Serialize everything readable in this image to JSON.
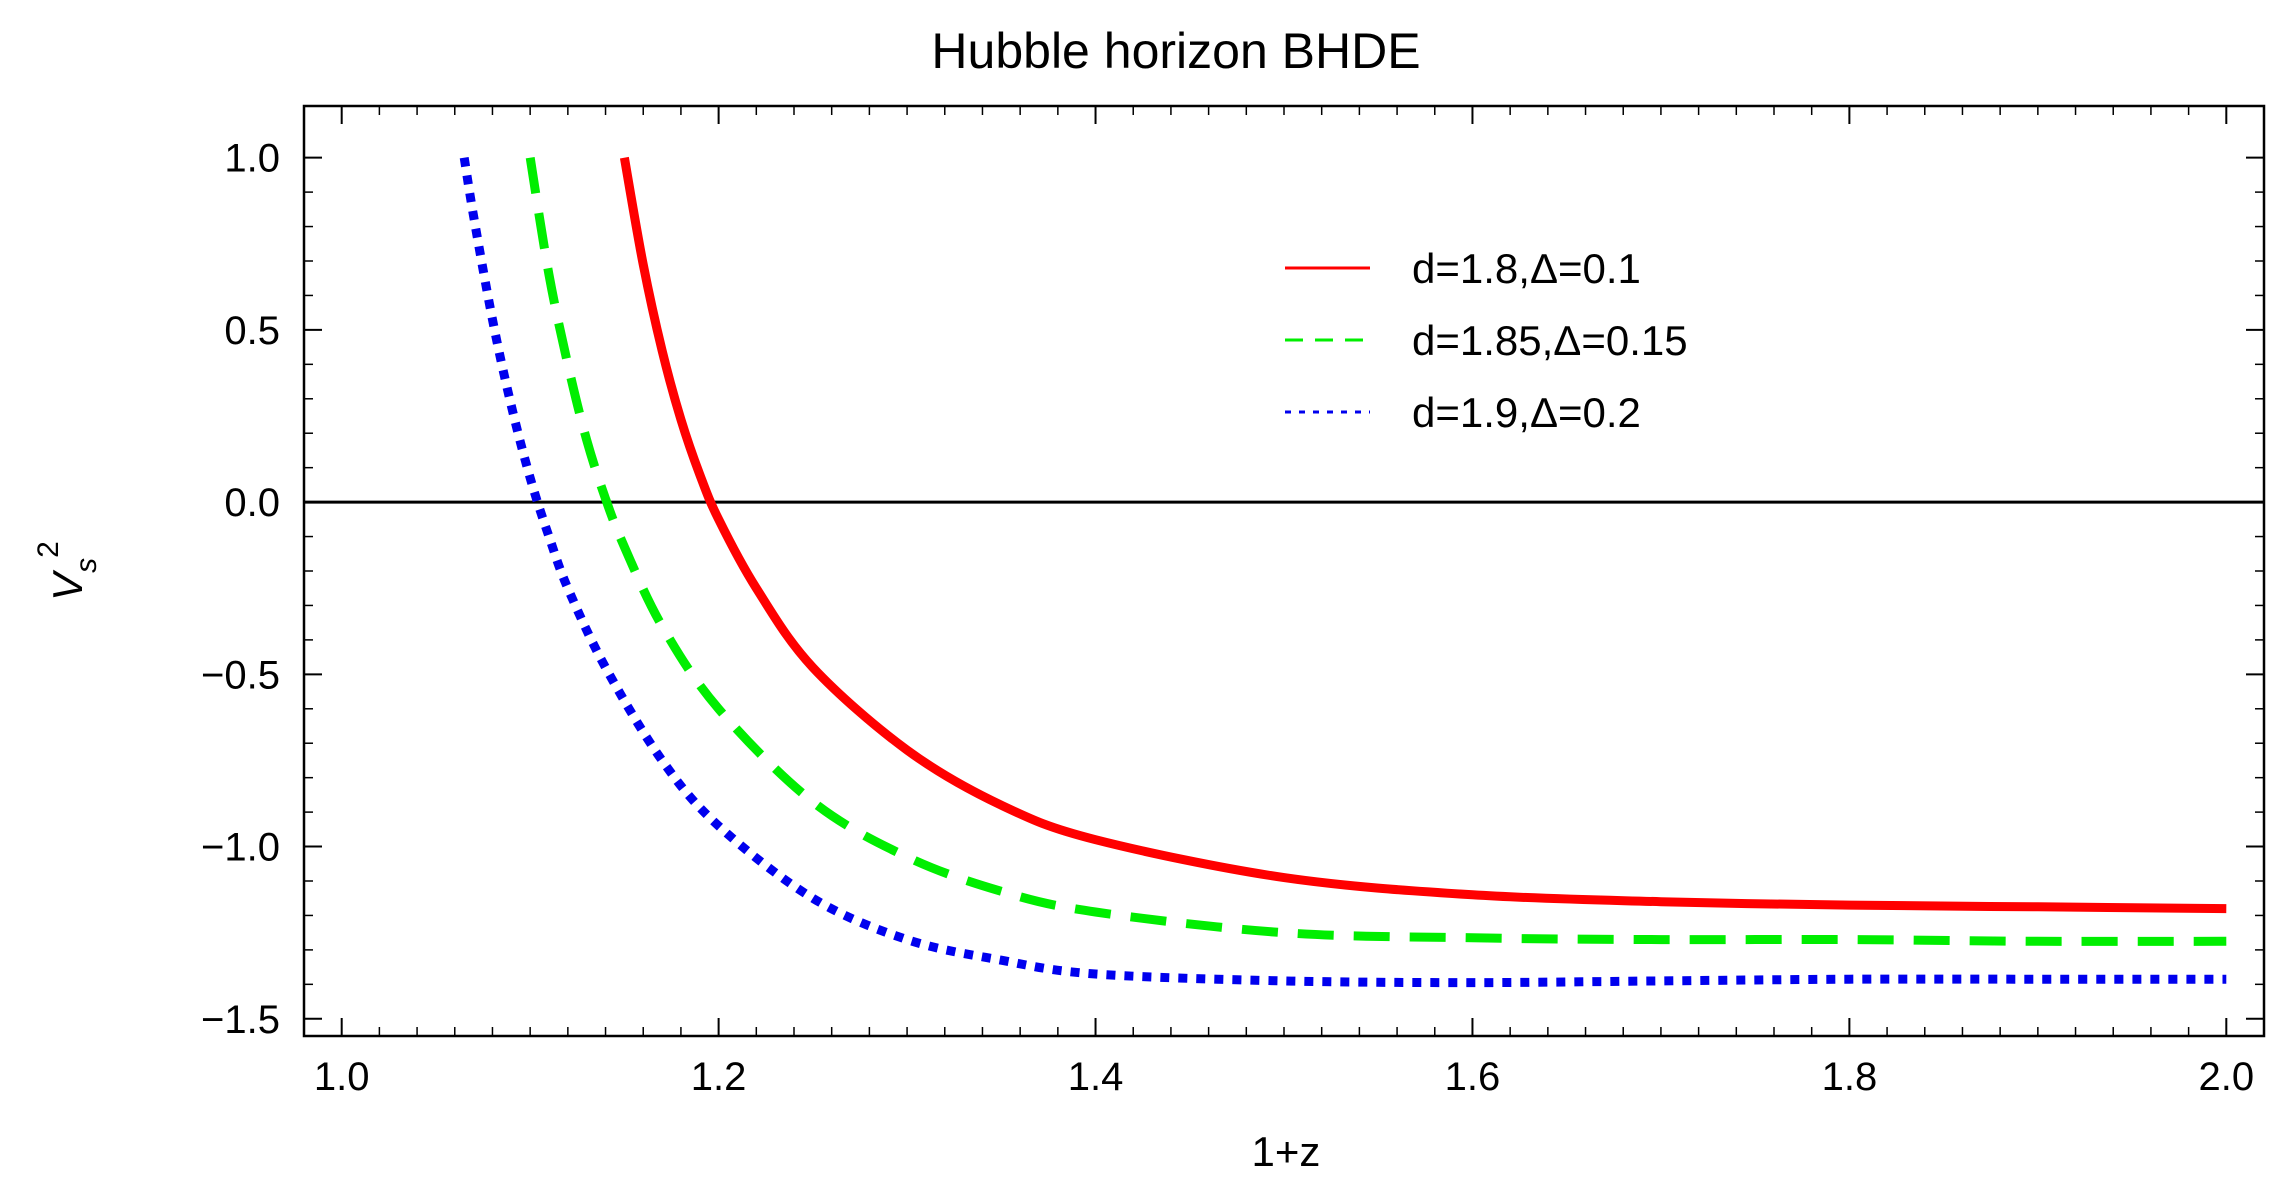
{
  "chart_data": {
    "type": "line",
    "title": "Hubble horizon BHDE",
    "xlabel": "1+z",
    "ylabel_base": "V",
    "ylabel_sub": "s",
    "ylabel_sup": "2",
    "xlim": [
      0.98,
      2.02
    ],
    "ylim": [
      -1.55,
      1.15
    ],
    "xticks": [
      1.0,
      1.2,
      1.4,
      1.6,
      1.8,
      2.0
    ],
    "xtick_labels": [
      "1.0",
      "1.2",
      "1.4",
      "1.6",
      "1.8",
      "2.0"
    ],
    "yticks": [
      1.0,
      0.5,
      0.0,
      -0.5,
      -1.0,
      -1.5
    ],
    "ytick_labels": [
      "1.0",
      "0.5",
      "0.0",
      "−0.5",
      "−1.0",
      "−1.5"
    ],
    "reference_line_y": 0.0,
    "grid": false,
    "legend_position": "top-right",
    "series": [
      {
        "name": "d=1.8,Δ=0.1",
        "color": "#ff0000",
        "style": "solid",
        "x": [
          1.15,
          1.16,
          1.17,
          1.18,
          1.19,
          1.2,
          1.22,
          1.25,
          1.3,
          1.35,
          1.4,
          1.5,
          1.6,
          1.7,
          1.8,
          1.9,
          2.0
        ],
        "y": [
          1.0,
          0.69,
          0.44,
          0.24,
          0.08,
          -0.05,
          -0.25,
          -0.48,
          -0.72,
          -0.88,
          -0.98,
          -1.09,
          -1.14,
          -1.16,
          -1.17,
          -1.175,
          -1.18
        ]
      },
      {
        "name": "d=1.85,Δ=0.15",
        "color": "#00ee00",
        "style": "dashed",
        "x": [
          1.1,
          1.11,
          1.12,
          1.13,
          1.14,
          1.15,
          1.17,
          1.2,
          1.25,
          1.3,
          1.35,
          1.4,
          1.5,
          1.6,
          1.7,
          1.8,
          1.9,
          2.0
        ],
        "y": [
          1.0,
          0.66,
          0.4,
          0.18,
          0.01,
          -0.13,
          -0.36,
          -0.6,
          -0.87,
          -1.03,
          -1.13,
          -1.19,
          -1.25,
          -1.265,
          -1.27,
          -1.27,
          -1.275,
          -1.275
        ]
      },
      {
        "name": "d=1.9,Δ=0.2",
        "color": "#0000ee",
        "style": "dotted",
        "x": [
          1.065,
          1.07,
          1.08,
          1.09,
          1.1,
          1.11,
          1.12,
          1.14,
          1.17,
          1.2,
          1.25,
          1.3,
          1.35,
          1.4,
          1.5,
          1.6,
          1.7,
          1.8,
          1.9,
          2.0
        ],
        "y": [
          1.0,
          0.83,
          0.53,
          0.28,
          0.07,
          -0.1,
          -0.25,
          -0.48,
          -0.75,
          -0.94,
          -1.15,
          -1.27,
          -1.33,
          -1.37,
          -1.39,
          -1.395,
          -1.39,
          -1.385,
          -1.385,
          -1.385
        ]
      }
    ]
  }
}
